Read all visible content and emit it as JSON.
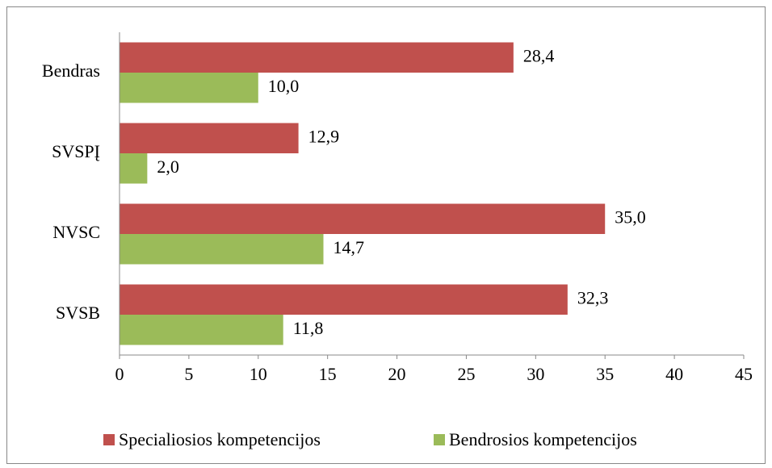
{
  "chart_data": {
    "type": "hbar",
    "categories": [
      "Bendras",
      "SVSPĮ",
      "NVSC",
      "SVSB"
    ],
    "series": [
      {
        "name": "Specialiosios kompetencijos",
        "color": "#c0504d",
        "values": [
          28.4,
          12.9,
          35.0,
          32.3
        ],
        "value_labels": [
          "28,4",
          "12,9",
          "35,0",
          "32,3"
        ]
      },
      {
        "name": "Bendrosios kompetencijos",
        "color": "#9bbb59",
        "values": [
          10.0,
          2.0,
          14.7,
          11.8
        ],
        "value_labels": [
          "10,0",
          "2,0",
          "14,7",
          "11,8"
        ]
      }
    ],
    "xlim": [
      0,
      45
    ],
    "xticks": [
      0,
      5,
      10,
      15,
      20,
      25,
      30,
      35,
      40,
      45
    ],
    "legend": "bottom",
    "grid": false
  }
}
